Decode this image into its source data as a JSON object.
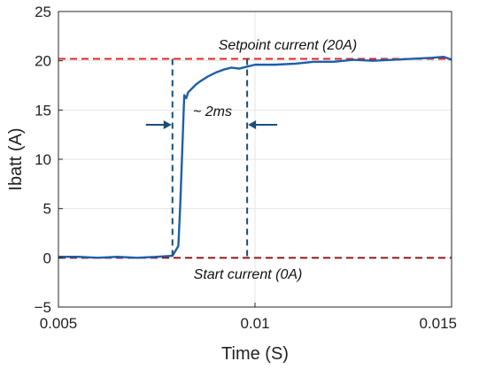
{
  "chart_data": {
    "type": "line",
    "title": "",
    "xlabel": "Time (S)",
    "ylabel": "Ibatt (A)",
    "xlim": [
      0.005,
      0.015
    ],
    "ylim": [
      -5,
      25
    ],
    "x_ticks": [
      "0.005",
      "0.01",
      "0.015"
    ],
    "y_ticks": [
      "-5",
      "0",
      "5",
      "10",
      "15",
      "20",
      "25"
    ],
    "grid": true,
    "series": [
      {
        "color": "#1f5fa8",
        "x": [
          0.005,
          0.0055,
          0.006,
          0.0065,
          0.007,
          0.0075,
          0.0079,
          0.00805,
          0.0081,
          0.00815,
          0.0082,
          0.00825,
          0.0083,
          0.0084,
          0.0085,
          0.0086,
          0.0088,
          0.009,
          0.0092,
          0.0094,
          0.0096,
          0.0098,
          0.01,
          0.0105,
          0.011,
          0.0115,
          0.012,
          0.0125,
          0.013,
          0.0135,
          0.014,
          0.0145,
          0.0148,
          0.015
        ],
        "y": [
          0.1,
          0.1,
          0.0,
          0.1,
          0.0,
          0.1,
          0.2,
          1.2,
          5.5,
          11.0,
          16.5,
          16.2,
          16.8,
          17.2,
          17.6,
          17.9,
          18.4,
          18.8,
          19.1,
          19.3,
          19.2,
          19.4,
          19.6,
          19.6,
          19.7,
          19.9,
          19.9,
          20.1,
          20.0,
          20.1,
          20.2,
          20.3,
          20.4,
          20.1
        ]
      }
    ],
    "reference_lines": [
      {
        "y": 20.2,
        "color": "#e32626",
        "label": "Setpoint current (20A)"
      },
      {
        "y": 0,
        "color": "#8b1a1a",
        "label": "Start current (0A)"
      }
    ],
    "markers": {
      "vlines_x": [
        0.0079,
        0.0098
      ],
      "color": "#1a4e7a",
      "interval_label": "~ 2ms",
      "arrow_y": 13.5
    }
  }
}
